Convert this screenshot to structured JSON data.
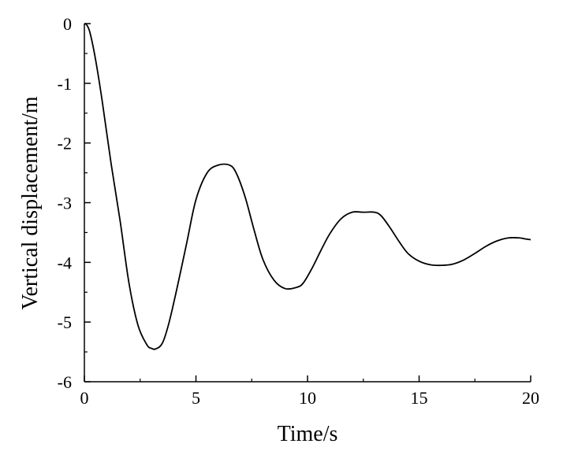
{
  "chart_data": {
    "type": "line",
    "title": "",
    "xlabel": "Time/s",
    "ylabel": "Vertical displacement/m",
    "xlim": [
      0,
      20
    ],
    "ylim": [
      -6,
      0
    ],
    "xticks": [
      0,
      5,
      10,
      15,
      20
    ],
    "xtick_labels": [
      "0",
      "5",
      "10",
      "15",
      "20"
    ],
    "yticks": [
      0,
      -1,
      -2,
      -3,
      -4,
      -5,
      -6
    ],
    "ytick_labels": [
      "0",
      "-1",
      "-2",
      "-3",
      "-4",
      "-5",
      "-6"
    ],
    "grid": false,
    "legend": "none",
    "line_color": "#000000",
    "series": [
      {
        "x": [
          0,
          0.1,
          0.25,
          0.5,
          0.8,
          1.2,
          1.6,
          2.0,
          2.4,
          2.8,
          3.0,
          3.2,
          3.5,
          3.8,
          4.2,
          4.6,
          5.0,
          5.5,
          6.0,
          6.5,
          6.8,
          7.2,
          7.6,
          8.0,
          8.5,
          9.0,
          9.5,
          9.8,
          10.2,
          10.6,
          11.0,
          11.5,
          12.0,
          12.5,
          13.0,
          13.3,
          13.7,
          14.1,
          14.5,
          15.0,
          15.5,
          16.0,
          16.5,
          17.0,
          17.5,
          18.0,
          18.5,
          19.0,
          19.5,
          19.8,
          20.0
        ],
        "y": [
          0,
          -0.02,
          -0.15,
          -0.6,
          -1.3,
          -2.35,
          -3.3,
          -4.35,
          -5.05,
          -5.38,
          -5.44,
          -5.45,
          -5.35,
          -5.0,
          -4.35,
          -3.65,
          -2.95,
          -2.5,
          -2.37,
          -2.37,
          -2.5,
          -2.9,
          -3.45,
          -3.95,
          -4.3,
          -4.44,
          -4.42,
          -4.35,
          -4.1,
          -3.8,
          -3.52,
          -3.27,
          -3.16,
          -3.16,
          -3.16,
          -3.22,
          -3.42,
          -3.65,
          -3.85,
          -3.98,
          -4.04,
          -4.05,
          -4.03,
          -3.96,
          -3.85,
          -3.73,
          -3.64,
          -3.59,
          -3.59,
          -3.61,
          -3.62
        ]
      }
    ]
  }
}
